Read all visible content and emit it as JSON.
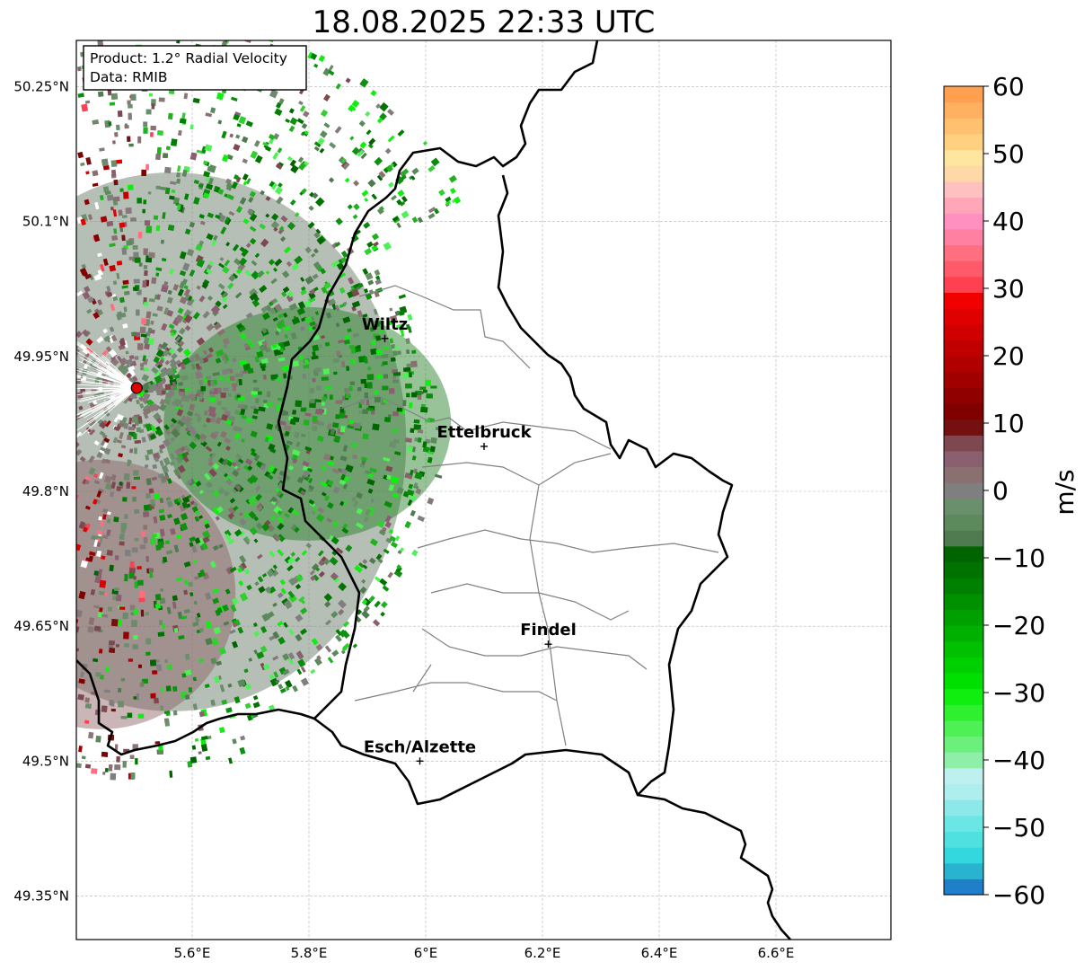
{
  "title": "18.08.2025 22:33 UTC",
  "info_box": {
    "product": "Product: 1.2° Radial Velocity",
    "data": "Data: RMIB"
  },
  "lat_labels": [
    "50.25°N",
    "50.1°N",
    "49.95°N",
    "49.8°N",
    "49.65°N",
    "49.5°N",
    "49.35°N"
  ],
  "lon_labels": [
    "5.6°E",
    "5.8°E",
    "6°E",
    "6.2°E",
    "6.4°E",
    "6.6°E"
  ],
  "cities": [
    {
      "name": "Wiltz",
      "lon": 5.93,
      "lat": 49.97
    },
    {
      "name": "Ettelbruck",
      "lon": 6.1,
      "lat": 49.85
    },
    {
      "name": "Findel",
      "lon": 6.21,
      "lat": 49.63
    },
    {
      "name": "Esch/Alzette",
      "lon": 5.99,
      "lat": 49.5
    }
  ],
  "radar_site": {
    "lon": 5.505,
    "lat": 49.915
  },
  "colorbar": {
    "label": "m/s",
    "ticks": [
      "60",
      "50",
      "40",
      "30",
      "20",
      "10",
      "0",
      "−10",
      "−20",
      "−30",
      "−40",
      "−50",
      "−60"
    ],
    "range": [
      -60,
      60
    ],
    "colors": [
      "#1f7fc8",
      "#2ab3d0",
      "#32d8dd",
      "#4fe0e0",
      "#6ae6e6",
      "#8de9e9",
      "#aeeeee",
      "#bff0f0",
      "#8ef0a8",
      "#6cf07c",
      "#4ff056",
      "#2ef02e",
      "#10ee10",
      "#00e000",
      "#00d000",
      "#00c000",
      "#00b000",
      "#00a000",
      "#009000",
      "#008000",
      "#007200",
      "#006400",
      "#507a50",
      "#5c8a5c",
      "#6b8f6b",
      "#7f7f7f",
      "#8a7070",
      "#8a6070",
      "#7f4850",
      "#751010",
      "#800000",
      "#900000",
      "#a00000",
      "#b00000",
      "#c00000",
      "#d00000",
      "#e00000",
      "#f00000",
      "#ff4050",
      "#ff5a6a",
      "#ff6f7f",
      "#ff80a0",
      "#ff90c0",
      "#ffa6b8",
      "#ffc0c0",
      "#ffd8a8",
      "#ffe6a0",
      "#ffd080",
      "#ffc070",
      "#ffb060",
      "#ffa050"
    ]
  }
}
